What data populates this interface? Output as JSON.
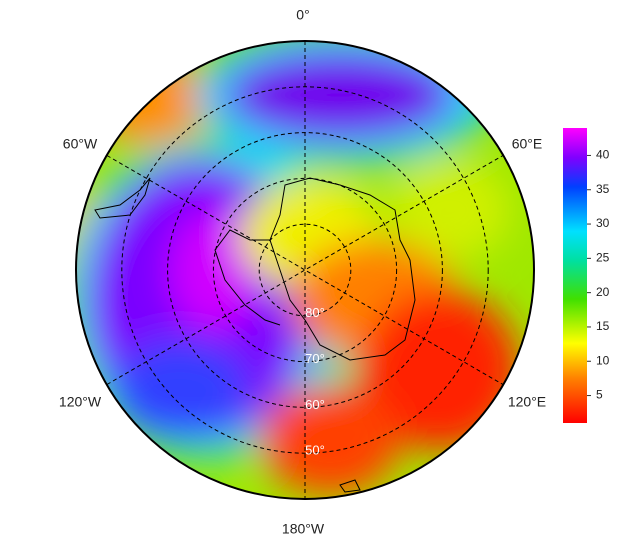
{
  "map": {
    "longitude_labels": [
      "0°",
      "60°E",
      "120°E",
      "180°W",
      "120°W",
      "60°W"
    ],
    "latitude_labels": [
      {
        "value": 80,
        "label": "80°"
      },
      {
        "value": 70,
        "label": "70°"
      },
      {
        "value": 60,
        "label": "60°"
      },
      {
        "value": 50,
        "label": "50°"
      }
    ],
    "colorbar": {
      "lim": [
        1,
        44
      ],
      "ticks": [
        5,
        10,
        15,
        20,
        25,
        30,
        35,
        40
      ]
    }
  }
}
